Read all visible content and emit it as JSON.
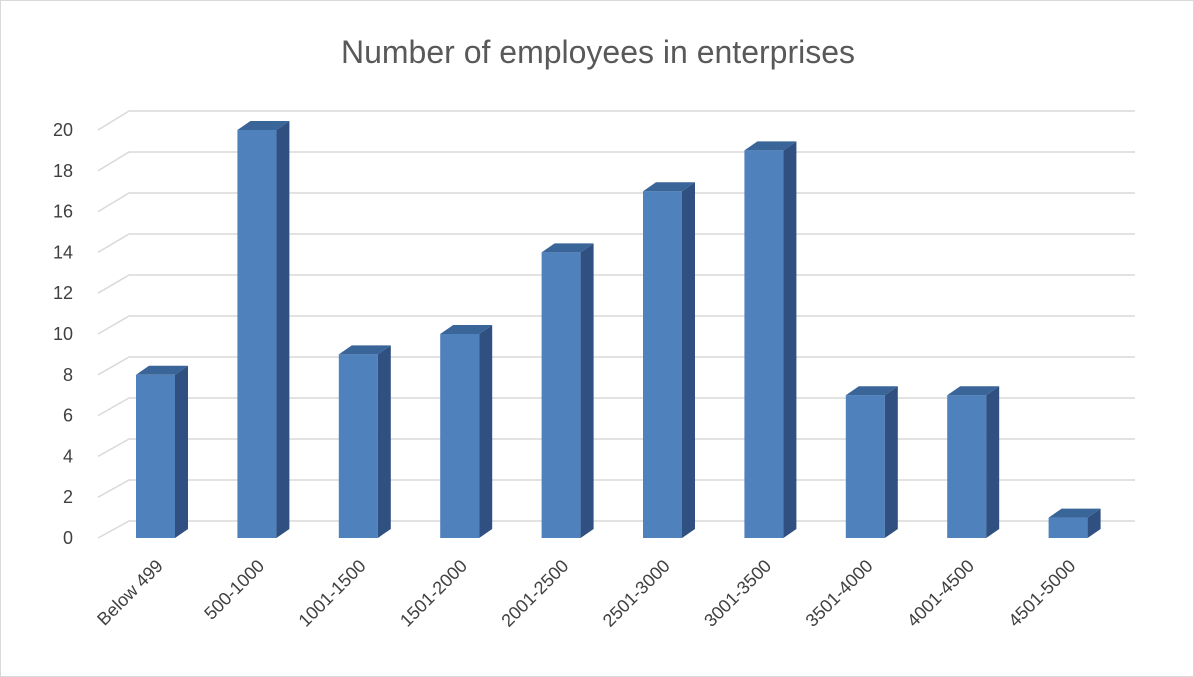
{
  "chart_data": {
    "type": "bar",
    "title": "Number of employees in enterprises",
    "xlabel": "",
    "ylabel": "",
    "categories": [
      "Below 499",
      "500-1000",
      "1001-1500",
      "1501-2000",
      "2001-2500",
      "2501-3000",
      "3001-3500",
      "3501-4000",
      "4001-4500",
      "4501-5000"
    ],
    "values": [
      8,
      20,
      9,
      10,
      14,
      17,
      19,
      7,
      7,
      1
    ],
    "ylim": [
      0,
      20
    ],
    "yticks": [
      0,
      2,
      4,
      6,
      8,
      10,
      12,
      14,
      16,
      18,
      20
    ],
    "grid": true,
    "legend": "none",
    "style": "3d-column",
    "colors": {
      "bar_front": "#4f81bd",
      "bar_side": "#2f5080",
      "bar_top": "#3a6598",
      "gridline": "#d9d9d9",
      "text": "#404040",
      "title": "#595959"
    }
  }
}
